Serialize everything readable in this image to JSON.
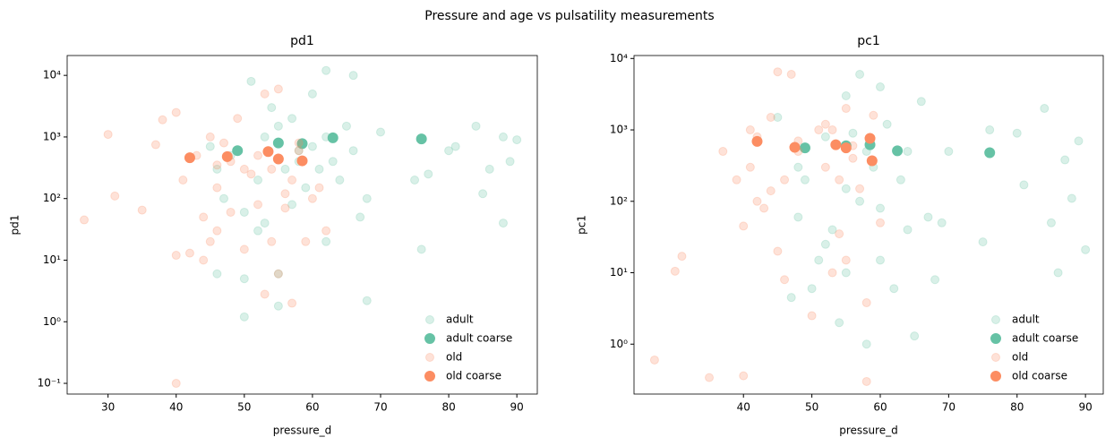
{
  "title": "Pressure and age vs pulsatility measurements",
  "chart_data": [
    {
      "type": "scatter",
      "title": "pd1",
      "xlabel": "pressure_d",
      "ylabel": "pd1",
      "yscale": "log",
      "legend": "lower right",
      "xlim": [
        24,
        93
      ],
      "ylim": [
        0.067,
        21000
      ],
      "xticks": [
        30,
        40,
        50,
        60,
        70,
        80,
        90
      ],
      "yticks": [
        {
          "value": 0.1,
          "label": "10⁻¹"
        },
        {
          "value": 1,
          "label": "10⁰"
        },
        {
          "value": 10,
          "label": "10¹"
        },
        {
          "value": 100,
          "label": "10²"
        },
        {
          "value": 1000,
          "label": "10³"
        },
        {
          "value": 10000,
          "label": "10⁴"
        }
      ],
      "series": [
        {
          "name": "adult",
          "color": "#66c2a5",
          "opacity": 0.25,
          "x": [
            46,
            47,
            48,
            50,
            50,
            51,
            52,
            53,
            53,
            54,
            55,
            55,
            56,
            57,
            57,
            58,
            59,
            60,
            60,
            61,
            62,
            62,
            63,
            64,
            65,
            66,
            66,
            67,
            68,
            70,
            75,
            76,
            77,
            80,
            81,
            84,
            85,
            86,
            88,
            88,
            89,
            90,
            50,
            55,
            62,
            45,
            58,
            68,
            46,
            52
          ],
          "values": [
            300,
            100,
            500,
            5,
            1.2,
            8000,
            200,
            1000,
            40,
            3000,
            6,
            1500,
            300,
            2000,
            80,
            600,
            150,
            5000,
            700,
            300,
            12000,
            1000,
            400,
            200,
            1500,
            10000,
            600,
            50,
            2.2,
            1200,
            200,
            15,
            250,
            600,
            700,
            1500,
            120,
            300,
            40,
            1000,
            400,
            900,
            60,
            1.8,
            20,
            700,
            400,
            100,
            6,
            30
          ]
        },
        {
          "name": "adult coarse",
          "color": "#66c2a5",
          "opacity": 1,
          "x": [
            49,
            55,
            58.5,
            63,
            76
          ],
          "values": [
            600,
            800,
            780,
            970,
            930
          ]
        },
        {
          "name": "old",
          "color": "#fc8d62",
          "opacity": 0.25,
          "x": [
            26.5,
            30,
            31,
            35,
            37,
            38,
            40,
            40,
            40,
            41,
            42,
            43,
            44,
            45,
            45,
            46,
            46,
            47,
            48,
            49,
            50,
            51,
            52,
            53,
            53,
            54,
            54,
            55,
            55,
            56,
            57,
            57,
            58,
            59,
            60,
            61,
            62,
            44,
            48,
            52,
            56,
            58,
            50,
            46
          ],
          "values": [
            45,
            1100,
            110,
            65,
            750,
            1900,
            0.1,
            12,
            2500,
            200,
            13,
            500,
            50,
            1000,
            20,
            30,
            150,
            800,
            60,
            2000,
            300,
            250,
            80,
            5000,
            2.8,
            300,
            20,
            6000,
            6,
            120,
            200,
            2,
            600,
            20,
            100,
            150,
            30,
            10,
            400,
            500,
            70,
            800,
            15,
            350
          ]
        },
        {
          "name": "old coarse",
          "color": "#fc8d62",
          "opacity": 1,
          "x": [
            42,
            47.5,
            53.5,
            55,
            58.5
          ],
          "values": [
            460,
            480,
            580,
            440,
            410
          ]
        }
      ]
    },
    {
      "type": "scatter",
      "title": "pc1",
      "xlabel": "pressure_d",
      "ylabel": "pc1",
      "yscale": "log",
      "legend": "lower right",
      "xlim": [
        24,
        92.6
      ],
      "ylim": [
        0.2,
        11000
      ],
      "xticks": [
        40,
        50,
        60,
        70,
        80,
        90
      ],
      "yticks": [
        {
          "value": 1,
          "label": "10⁰"
        },
        {
          "value": 10,
          "label": "10¹"
        },
        {
          "value": 100,
          "label": "10²"
        },
        {
          "value": 1000,
          "label": "10³"
        },
        {
          "value": 10000,
          "label": "10⁴"
        }
      ],
      "series": [
        {
          "name": "adult",
          "color": "#66c2a5",
          "opacity": 0.25,
          "x": [
            45,
            47,
            48,
            49,
            50,
            51,
            52,
            53,
            54,
            55,
            55,
            56,
            57,
            58,
            58,
            59,
            60,
            60,
            61,
            62,
            63,
            64,
            65,
            66,
            67,
            68,
            70,
            75,
            76,
            80,
            81,
            84,
            85,
            86,
            87,
            88,
            89,
            90,
            52,
            57,
            60,
            64,
            48,
            55,
            69
          ],
          "values": [
            1500,
            4.5,
            60,
            200,
            6,
            15,
            800,
            40,
            2,
            3000,
            150,
            900,
            6000,
            1,
            500,
            300,
            4000,
            80,
            1200,
            6,
            200,
            500,
            1.3,
            2500,
            60,
            8,
            500,
            27,
            1000,
            900,
            170,
            2000,
            50,
            10,
            380,
            110,
            700,
            21,
            25,
            100,
            15,
            40,
            300,
            10,
            50
          ]
        },
        {
          "name": "adult coarse",
          "color": "#66c2a5",
          "opacity": 1,
          "x": [
            49,
            55,
            58.5,
            62.5,
            76
          ],
          "values": [
            560,
            600,
            620,
            510,
            480
          ]
        },
        {
          "name": "old",
          "color": "#fc8d62",
          "opacity": 0.25,
          "x": [
            27,
            30,
            31,
            35,
            37,
            39,
            40,
            40,
            41,
            41,
            42,
            43,
            44,
            45,
            45,
            46,
            46,
            47,
            48,
            50,
            51,
            52,
            53,
            53,
            54,
            54,
            55,
            55,
            56,
            57,
            58,
            58,
            59,
            60,
            42,
            48,
            52,
            56,
            44
          ],
          "values": [
            0.6,
            10.5,
            17,
            0.34,
            500,
            200,
            0.36,
            45,
            1000,
            300,
            100,
            80,
            1500,
            6500,
            20,
            8,
            200,
            6000,
            700,
            2.5,
            1000,
            300,
            10,
            1000,
            35,
            200,
            2000,
            15,
            600,
            150,
            3.8,
            0.3,
            1600,
            50,
            800,
            500,
            1200,
            400,
            140
          ]
        },
        {
          "name": "old coarse",
          "color": "#fc8d62",
          "opacity": 1,
          "x": [
            42,
            47.5,
            53.5,
            55,
            58.5,
            58.8
          ],
          "values": [
            690,
            570,
            620,
            560,
            760,
            370
          ]
        }
      ]
    }
  ]
}
